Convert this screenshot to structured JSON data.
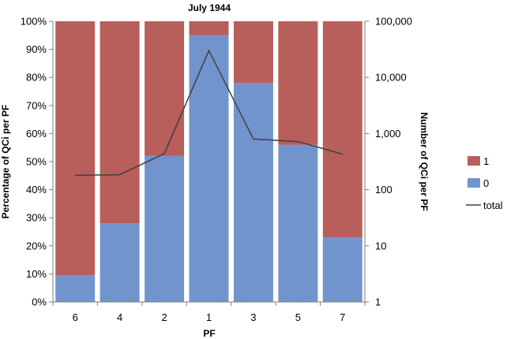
{
  "chart_data": {
    "type": "bar",
    "stacked": true,
    "title": "July 1944",
    "xlabel": "PF",
    "ylabel": "Percentage of QCi per PF",
    "y2label": "Number of QCi per PF",
    "categories": [
      "6",
      "4",
      "2",
      "1",
      "3",
      "5",
      "7"
    ],
    "series": [
      {
        "name": "0",
        "kind": "bar",
        "color": "#7294cc",
        "values": [
          9.5,
          28,
          52,
          95,
          78,
          56,
          23
        ]
      },
      {
        "name": "1",
        "kind": "bar",
        "color": "#b85e5b",
        "values": [
          90.5,
          72,
          48,
          5,
          22,
          44,
          77
        ]
      },
      {
        "name": "total",
        "kind": "line",
        "axis": "secondary",
        "color": "#404040",
        "values": [
          180,
          185,
          440,
          30000,
          800,
          720,
          430
        ]
      }
    ],
    "ylim": [
      0,
      100
    ],
    "y2lim": [
      1,
      100000
    ],
    "y2scale": "log",
    "yticks": [
      "0%",
      "10%",
      "20%",
      "30%",
      "40%",
      "50%",
      "60%",
      "70%",
      "80%",
      "90%",
      "100%"
    ],
    "y2ticks": [
      "1",
      "10",
      "100",
      "1,000",
      "10,000",
      "100,000"
    ],
    "legend": {
      "position": "right",
      "entries": [
        {
          "label": "1",
          "symbol": "box",
          "color": "#b85e5b"
        },
        {
          "label": "0",
          "symbol": "box",
          "color": "#7294cc"
        },
        {
          "label": "total",
          "symbol": "line",
          "color": "#404040"
        }
      ]
    },
    "grid": false
  }
}
